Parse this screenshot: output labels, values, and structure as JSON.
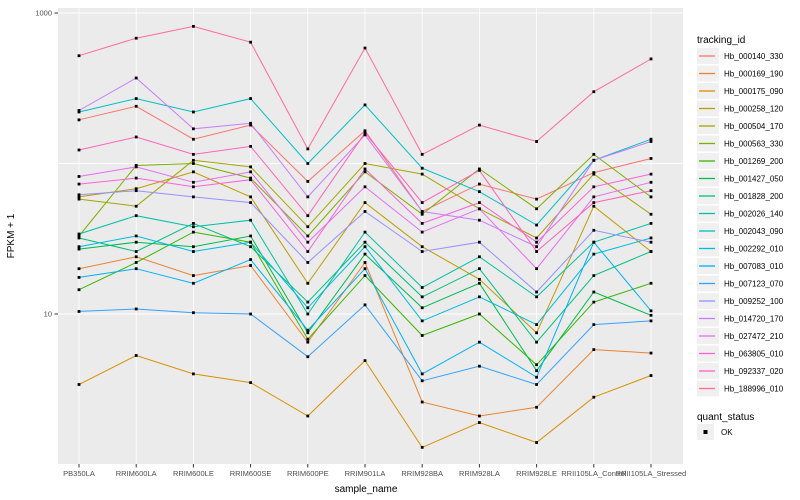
{
  "figure": {
    "background": "#FFFFFF",
    "panel_background": "#EBEBEB",
    "grid_color": "#FFFFFF",
    "tick_label_color": "#4D4D4D",
    "axis_title_color": "#000000",
    "point_color": "#000000",
    "legend_key_fill": "#F0F0F0"
  },
  "chart_data": {
    "type": "line",
    "xlabel": "sample_name",
    "ylabel": "FPKM + 1",
    "y_scale": "log10",
    "y_tick_labels": [
      "1000",
      "10"
    ],
    "y_tick_values": [
      1000,
      10
    ],
    "y_gridline_values": [
      1000,
      100,
      10
    ],
    "ylim": [
      1,
      1080
    ],
    "grid": true,
    "legend_position": "right",
    "categories": [
      "PB350LA",
      "RRIM600LA",
      "RRIM600LE",
      "RRIM600SE",
      "RRIM600PE",
      "RRIM901LA",
      "RRIM928BA",
      "RRIM928LA",
      "RRIM928LE",
      "RRII105LA_Control",
      "RRII105LA_Stressed"
    ],
    "series": [
      {
        "name": "Hb_000140_330",
        "color": "#F8766D",
        "values": [
          195,
          240,
          145,
          180,
          76,
          165,
          48,
          73,
          58,
          87,
          108
        ]
      },
      {
        "name": "Hb_000169_190",
        "color": "#EA8331",
        "values": [
          20,
          24,
          18,
          21,
          6.5,
          22,
          2.6,
          2.1,
          2.4,
          5.8,
          5.5
        ]
      },
      {
        "name": "Hb_000175_090",
        "color": "#D89000",
        "values": [
          3.4,
          5.3,
          4.0,
          3.5,
          2.1,
          4.9,
          1.3,
          1.9,
          1.4,
          2.8,
          3.9
        ]
      },
      {
        "name": "Hb_000258_120",
        "color": "#C09B00",
        "values": [
          60,
          68,
          88,
          60,
          16,
          55,
          28,
          17,
          7.5,
          52,
          26
        ]
      },
      {
        "name": "Hb_000504_170",
        "color": "#A3A500",
        "values": [
          58,
          52,
          105,
          95,
          38,
          100,
          85,
          50,
          32,
          85,
          46
        ]
      },
      {
        "name": "Hb_000563_330",
        "color": "#7CAE00",
        "values": [
          33,
          97,
          100,
          80,
          33,
          88,
          46,
          92,
          50,
          115,
          60
        ]
      },
      {
        "name": "Hb_001269_200",
        "color": "#39B600",
        "values": [
          14.5,
          22,
          35,
          30,
          6.8,
          18,
          7.2,
          10,
          4.6,
          12,
          16
        ]
      },
      {
        "name": "Hb_001427_050",
        "color": "#00BB4E",
        "values": [
          27,
          30,
          28,
          33,
          7.5,
          25,
          11,
          16,
          4.2,
          14,
          9.8
        ]
      },
      {
        "name": "Hb_001828_200",
        "color": "#00BF7D",
        "values": [
          32,
          26,
          40,
          28,
          12,
          30,
          13,
          20,
          6.5,
          18,
          26
        ]
      },
      {
        "name": "Hb_002026_140",
        "color": "#00C1A3",
        "values": [
          34,
          45,
          38,
          42,
          10,
          35,
          15,
          24,
          13,
          30,
          40
        ]
      },
      {
        "name": "Hb_002043_090",
        "color": "#00BFC4",
        "values": [
          220,
          270,
          220,
          270,
          100,
          245,
          93,
          65,
          39,
          105,
          145
        ]
      },
      {
        "name": "Hb_002292_010",
        "color": "#00BAE0",
        "values": [
          28,
          33,
          26,
          30,
          11,
          28,
          9,
          13,
          8.5,
          25,
          32
        ]
      },
      {
        "name": "Hb_007083_010",
        "color": "#00B0F6",
        "values": [
          17.5,
          20,
          16,
          23,
          7.8,
          20,
          4.0,
          6.5,
          3.8,
          30,
          10.5
        ]
      },
      {
        "name": "Hb_007123_070",
        "color": "#35A2FF",
        "values": [
          10.4,
          10.8,
          10.2,
          10.0,
          5.2,
          11.5,
          3.6,
          4.5,
          3.4,
          8.5,
          9.0
        ]
      },
      {
        "name": "Hb_009252_100",
        "color": "#9590FF",
        "values": [
          62,
          66,
          60,
          55,
          22,
          48,
          26,
          30,
          14,
          36,
          30
        ]
      },
      {
        "name": "Hb_014720_170",
        "color": "#C77CFF",
        "values": [
          225,
          370,
          170,
          185,
          60,
          155,
          48,
          42,
          28,
          105,
          140
        ]
      },
      {
        "name": "Hb_027472_210",
        "color": "#E76BF3",
        "values": [
          82,
          95,
          75,
          88,
          30,
          70,
          35,
          50,
          20,
          60,
          75
        ]
      },
      {
        "name": "Hb_063805_010",
        "color": "#FA62DB",
        "values": [
          73,
          80,
          70,
          78,
          26,
          92,
          40,
          55,
          30,
          70,
          85
        ]
      },
      {
        "name": "Hb_092337_020",
        "color": "#FF62BC",
        "values": [
          123,
          150,
          115,
          130,
          45,
          160,
          55,
          90,
          26,
          55,
          66
        ]
      },
      {
        "name": "Hb_188996_010",
        "color": "#FF6A98",
        "values": [
          520,
          680,
          815,
          640,
          125,
          585,
          115,
          180,
          140,
          300,
          495
        ]
      }
    ]
  },
  "legend": {
    "tracking_title": "tracking_id",
    "quant_title": "quant_status",
    "quant_items": [
      {
        "label": "OK",
        "marker": "black-square"
      }
    ]
  }
}
